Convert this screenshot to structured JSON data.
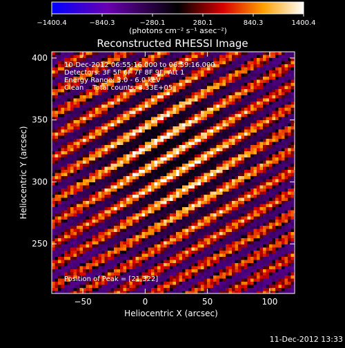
{
  "chart_data": {
    "type": "heatmap",
    "title": "Reconstructed RHESSI Image",
    "xlabel": "Heliocentric X (arcsec)",
    "ylabel": "Heliocentric Y (arcsec)",
    "xlim": [
      -75,
      120
    ],
    "ylim": [
      210,
      405
    ],
    "x_ticks": [
      -50,
      0,
      50,
      100
    ],
    "y_ticks": [
      250,
      300,
      350,
      400
    ],
    "colorbar": {
      "min": -1400.4,
      "max": 1400.4,
      "ticks": [
        -1400.4,
        -840.3,
        -280.1,
        280.1,
        840.3,
        1400.4
      ],
      "unit_label": "(photons cm⁻² s⁻¹ asec⁻²)",
      "colors": [
        "#0000ff",
        "#000000",
        "#ff0000",
        "#ffff00",
        "#ffffff"
      ]
    },
    "annotations": [
      "10-Dec-2012 06:55:16.000 to 06:59:16.000",
      "Detectors: 3F 5F 6F 7F 8F 9F, Att 1",
      "Energy Range: 3.0 - 6.0 keV",
      "Clean    Total counts: 3.33E+05"
    ],
    "peak_label": "Position of Peak = [21,322]",
    "peak": [
      21,
      322
    ],
    "stripe_angle_deg": 30
  },
  "footer": {
    "timestamp": "11-Dec-2012 13:33"
  }
}
